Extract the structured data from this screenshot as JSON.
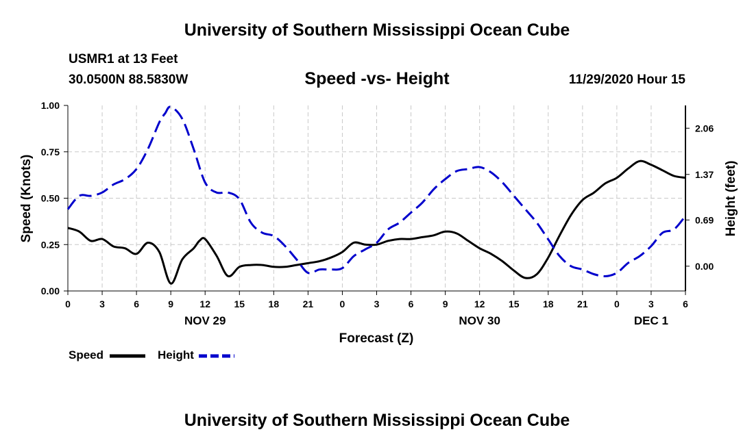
{
  "header": {
    "title": "University of Southern Mississippi Ocean Cube",
    "station": "USMR1 at 13 Feet",
    "coords": "30.0500N 88.5830W",
    "subtitle": "Speed -vs- Height",
    "datetime": "11/29/2020 Hour 15"
  },
  "footer": {
    "title": "University of Southern Mississippi Ocean Cube"
  },
  "legend": {
    "speed_label": "Speed",
    "height_label": "Height"
  },
  "chart_data": {
    "type": "line",
    "title": "Speed -vs- Height",
    "xlabel": "Forecast (Z)",
    "ylabel": "Speed (Knots)",
    "y2label": "Height (feet)",
    "xlim": [
      0,
      54
    ],
    "ylim": [
      0,
      1.0
    ],
    "y2lim": [
      -0.37,
      2.4
    ],
    "grid": true,
    "x_ticks": [
      0,
      3,
      6,
      9,
      12,
      15,
      18,
      21,
      24,
      27,
      30,
      33,
      36,
      39,
      42,
      45,
      48,
      51,
      54
    ],
    "x_tick_labels": [
      "0",
      "3",
      "6",
      "9",
      "12",
      "15",
      "18",
      "21",
      "0",
      "3",
      "6",
      "9",
      "12",
      "15",
      "18",
      "21",
      "0",
      "3",
      "6"
    ],
    "y_ticks": [
      0.0,
      0.25,
      0.5,
      0.75,
      1.0
    ],
    "y_tick_labels": [
      "0.00",
      "0.25",
      "0.50",
      "0.75",
      "1.00"
    ],
    "y2_ticks": [
      0.0,
      0.69,
      1.37,
      2.06
    ],
    "y2_tick_labels": [
      "0.00",
      "0.69",
      "1.37",
      "2.06"
    ],
    "date_labels": [
      {
        "x": 12,
        "label": "NOV 29"
      },
      {
        "x": 36,
        "label": "NOV 30"
      },
      {
        "x": 51,
        "label": "DEC 1"
      }
    ],
    "colors": {
      "speed": "#000000",
      "height": "#0000cc",
      "grid": "#c8c8c8"
    },
    "series": [
      {
        "name": "Speed",
        "axis": "left",
        "x": [
          0,
          1,
          2,
          3,
          4,
          5,
          6,
          7,
          8,
          9,
          10,
          11,
          11.5,
          12,
          13,
          14,
          15,
          16,
          17,
          18,
          19,
          20,
          21,
          22,
          23,
          24,
          25,
          26,
          27,
          28,
          29,
          30,
          31,
          32,
          33,
          34,
          35,
          36,
          37,
          38,
          39,
          40,
          41,
          42,
          43,
          44,
          45,
          46,
          47,
          48,
          49,
          50,
          51,
          52,
          53,
          54
        ],
        "values": [
          0.34,
          0.32,
          0.27,
          0.28,
          0.24,
          0.23,
          0.2,
          0.26,
          0.21,
          0.04,
          0.17,
          0.23,
          0.27,
          0.28,
          0.19,
          0.08,
          0.13,
          0.14,
          0.14,
          0.13,
          0.13,
          0.14,
          0.15,
          0.16,
          0.18,
          0.21,
          0.26,
          0.25,
          0.25,
          0.27,
          0.28,
          0.28,
          0.29,
          0.3,
          0.32,
          0.31,
          0.27,
          0.23,
          0.2,
          0.16,
          0.11,
          0.07,
          0.09,
          0.18,
          0.3,
          0.41,
          0.49,
          0.53,
          0.58,
          0.61,
          0.66,
          0.7,
          0.68,
          0.65,
          0.62,
          0.61
        ]
      },
      {
        "name": "Height",
        "axis": "right",
        "x": [
          0,
          1,
          2,
          3,
          4,
          5,
          6,
          7,
          8,
          8.5,
          9,
          10,
          11,
          12,
          13,
          14,
          15,
          16,
          17,
          18,
          19,
          20,
          21,
          22,
          23,
          24,
          25,
          26,
          27,
          28,
          29,
          30,
          31,
          32,
          33,
          34,
          35,
          36,
          37,
          38,
          39,
          40,
          41,
          42,
          43,
          44,
          45,
          46,
          47,
          48,
          49,
          50,
          51,
          52,
          53,
          54
        ],
        "values": [
          0.85,
          1.05,
          1.05,
          1.1,
          1.22,
          1.3,
          1.45,
          1.75,
          2.15,
          2.28,
          2.38,
          2.2,
          1.75,
          1.25,
          1.1,
          1.1,
          1.0,
          0.65,
          0.5,
          0.45,
          0.3,
          0.1,
          -0.1,
          -0.05,
          -0.05,
          -0.03,
          0.15,
          0.25,
          0.35,
          0.55,
          0.65,
          0.8,
          0.95,
          1.15,
          1.3,
          1.42,
          1.45,
          1.48,
          1.4,
          1.25,
          1.05,
          0.85,
          0.65,
          0.4,
          0.15,
          0.0,
          -0.05,
          -0.12,
          -0.15,
          -0.1,
          0.05,
          0.15,
          0.3,
          0.5,
          0.55,
          0.75
        ]
      }
    ]
  }
}
